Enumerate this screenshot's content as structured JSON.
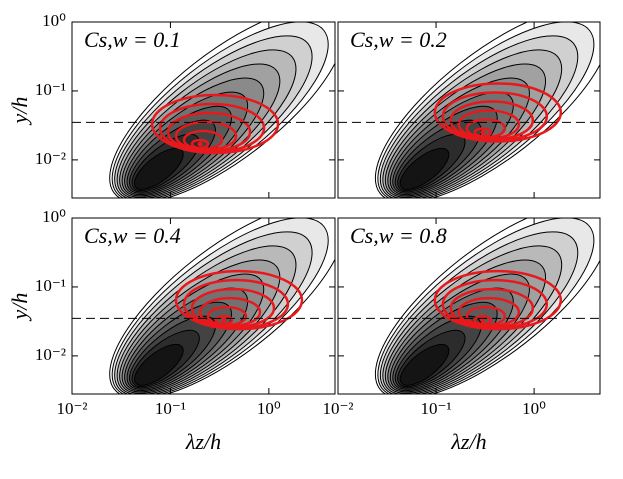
{
  "chart_data": [
    {
      "type": "contour",
      "annotation": "Cs,w = 0.1",
      "ylabel": "y/h",
      "xlim": [
        0.01,
        4.7
      ],
      "ylim": [
        0.0028,
        1
      ],
      "log_x": true,
      "log_y": true,
      "xticks": [
        0.01,
        0.1,
        1
      ],
      "yticks": [
        {
          "value": 0.01,
          "label": "10⁻²"
        },
        {
          "value": 0.1,
          "label": "10⁻¹"
        },
        {
          "value": 1,
          "label": "10⁰"
        }
      ],
      "dashed_line_y": 0.035,
      "peak": {
        "x": 0.065,
        "y": 0.006
      },
      "red_peak": {
        "x": 0.2,
        "y": 0.017
      },
      "red_color": "#e8191c"
    },
    {
      "type": "contour",
      "annotation": "Cs,w = 0.2",
      "xlim": [
        0.01,
        4.7
      ],
      "ylim": [
        0.0028,
        1
      ],
      "log_x": true,
      "log_y": true,
      "xticks": [
        0.01,
        0.1,
        1
      ],
      "yticks": [
        0.01,
        0.1,
        1
      ],
      "dashed_line_y": 0.035,
      "peak": {
        "x": 0.065,
        "y": 0.006
      },
      "red_peak": {
        "x": 0.3,
        "y": 0.025
      },
      "red_color": "#e8191c"
    },
    {
      "type": "contour",
      "annotation": "Cs,w = 0.4",
      "ylabel": "y/h",
      "xlabel": "λz/h",
      "xlim": [
        0.01,
        4.7
      ],
      "ylim": [
        0.0028,
        1
      ],
      "log_x": true,
      "log_y": true,
      "xticks": [
        {
          "value": 0.01,
          "label": "10⁻²"
        },
        {
          "value": 0.1,
          "label": "10⁻¹"
        },
        {
          "value": 1,
          "label": "10⁰"
        }
      ],
      "yticks": [
        {
          "value": 0.01,
          "label": "10⁻²"
        },
        {
          "value": 0.1,
          "label": "10⁻¹"
        },
        {
          "value": 1,
          "label": "10⁰"
        }
      ],
      "dashed_line_y": 0.035,
      "peak": {
        "x": 0.065,
        "y": 0.006
      },
      "red_peak": {
        "x": 0.35,
        "y": 0.033
      },
      "red_color": "#e8191c"
    },
    {
      "type": "contour",
      "annotation": "Cs,w = 0.8",
      "xlabel": "λz/h",
      "xlim": [
        0.01,
        4.7
      ],
      "ylim": [
        0.0028,
        1
      ],
      "log_x": true,
      "log_y": true,
      "xticks": [
        {
          "value": 0.01,
          "label": "10⁻²"
        },
        {
          "value": 0.1,
          "label": "10⁻¹"
        },
        {
          "value": 1,
          "label": "10⁰"
        }
      ],
      "yticks": [
        0.01,
        0.1,
        1
      ],
      "dashed_line_y": 0.035,
      "peak": {
        "x": 0.065,
        "y": 0.006
      },
      "red_peak": {
        "x": 0.3,
        "y": 0.033
      },
      "red_color": "#e8191c"
    }
  ]
}
